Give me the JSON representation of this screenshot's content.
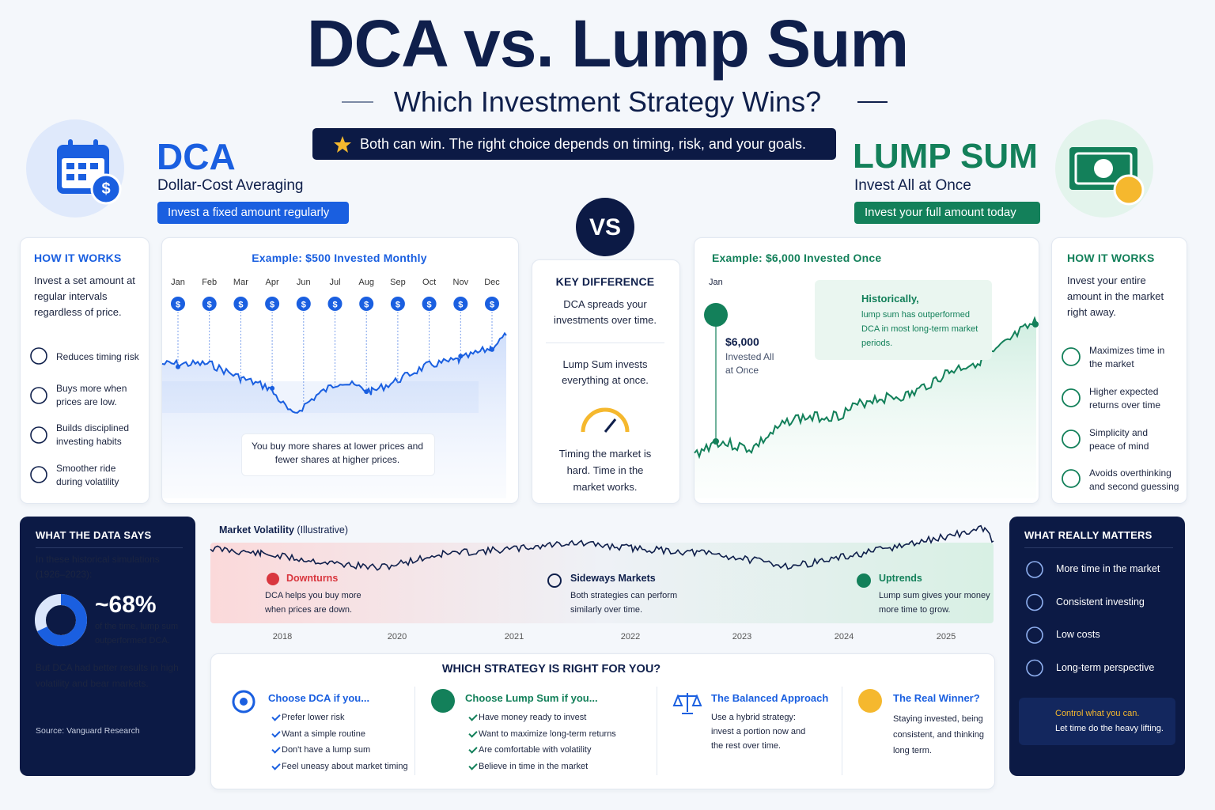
{
  "header": {
    "title": "DCA vs. Lump Sum",
    "subtitle": "Which Investment Strategy Wins?",
    "banner": "Both can win.  The right choice depends on timing, risk, and your goals."
  },
  "dca": {
    "title": "DCA",
    "subtitle": "Dollar-Cost Averaging",
    "tag": "Invest a fixed amount regularly",
    "how_title": "HOW IT WORKS",
    "how_text": "Invest a set amount at regular intervals regardless of price.",
    "benefits": [
      "Reduces timing risk",
      "Buys more when prices are low.",
      "Builds disciplined investing habits",
      "Smoother ride during volatility"
    ],
    "example_title": "Example: $500 Invested Monthly",
    "months": [
      "Jan",
      "Feb",
      "Mar",
      "Apr",
      "Jun",
      "Jul",
      "Aug",
      "Sep",
      "Oct",
      "Nov",
      "Dec"
    ],
    "marker": "$",
    "example_note": "You buy more shares at lower prices and fewer shares at higher prices."
  },
  "vs": "VS",
  "key_difference": {
    "title": "KEY DIFFERENCE",
    "dca": "DCA spreads your investments over time.",
    "lump": "Lump Sum invests everything at once.",
    "note": "Timing the market is hard. Time in the market works."
  },
  "lump": {
    "title": "LUMP SUM",
    "subtitle": "Invest All at Once",
    "tag": "Invest your full amount today",
    "example_title": "Example: $6,000 Invested Once",
    "month": "Jan",
    "amount": "$6,000",
    "amount_note": "Invested All at Once",
    "historic_title": "Historically,",
    "historic_text": "lump sum has outperformed DCA in most long-term market periods.",
    "how_title": "HOW IT WORKS",
    "how_text": "Invest your entire amount in the market right away.",
    "benefits": [
      "Maximizes time in the market",
      "Higher expected returns over time",
      "Simplicity and peace of mind",
      "Avoids overthinking and second guessing"
    ]
  },
  "data_says": {
    "title": "WHAT THE DATA SAYS",
    "intro": "In these historical simulations (1926–2023):",
    "stat": {
      "value": 68,
      "label": "~68%"
    },
    "stat_text": "of the time, lump sum outperformed DCA.",
    "note": "But DCA had better results in high volatility and bear markets.",
    "source": "Source: Vanguard Research"
  },
  "volatility": {
    "title": "Market Volatility",
    "qualifier": "(Illustrative)",
    "years": [
      "2018",
      "2020",
      "2021",
      "2022",
      "2023",
      "2024",
      "2025"
    ],
    "zones": [
      {
        "title": "Downturns",
        "text": "DCA helps you buy more when prices are down."
      },
      {
        "title": "Sideways Markets",
        "text": "Both strategies can perform similarly over time."
      },
      {
        "title": "Uptrends",
        "text": "Lump sum gives your money more time to grow."
      }
    ]
  },
  "which": {
    "title": "WHICH STRATEGY IS RIGHT FOR YOU?",
    "dca": {
      "title": "Choose DCA if you...",
      "items": [
        "Prefer lower risk",
        "Want a simple routine",
        "Don't have a lump sum",
        "Feel uneasy about market timing"
      ]
    },
    "lump": {
      "title": "Choose Lump Sum if you...",
      "items": [
        "Have money ready to invest",
        "Want to maximize long-term returns",
        "Are comfortable with volatility",
        "Believe in time in the market"
      ]
    },
    "balanced": {
      "title": "The Balanced Approach",
      "text": "Use a hybrid strategy: invest a portion now and the rest over time."
    },
    "winner": {
      "title": "The Real Winner?",
      "text": "Staying invested, being consistent, and thinking long term."
    }
  },
  "matters": {
    "title": "WHAT REALLY MATTERS",
    "items": [
      "More time in the market",
      "Consistent investing",
      "Low costs",
      "Long-term perspective"
    ],
    "callout_title": "Control what you can.",
    "callout_text": "Let time do the heavy lifting."
  }
}
